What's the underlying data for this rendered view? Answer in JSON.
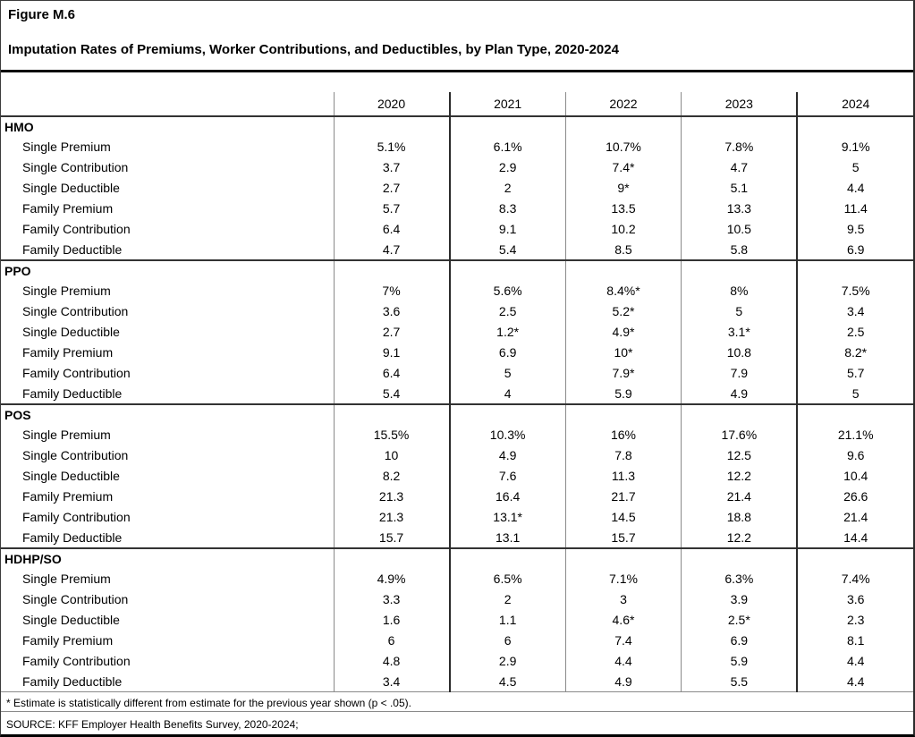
{
  "figure": {
    "label": "Figure M.6",
    "title": "Imputation Rates of Premiums, Worker Contributions, and Deductibles, by Plan Type, 2020-2024"
  },
  "chart_data": {
    "type": "table",
    "columns": [
      "2020",
      "2021",
      "2022",
      "2023",
      "2024"
    ],
    "sections": [
      {
        "name": "HMO",
        "rows": [
          {
            "label": "Single Premium",
            "values": [
              "5.1%",
              "6.1%",
              "10.7%",
              "7.8%",
              "9.1%"
            ]
          },
          {
            "label": "Single Contribution",
            "values": [
              "3.7",
              "2.9",
              "7.4*",
              "4.7",
              "5"
            ]
          },
          {
            "label": "Single Deductible",
            "values": [
              "2.7",
              "2",
              "9*",
              "5.1",
              "4.4"
            ]
          },
          {
            "label": "Family Premium",
            "values": [
              "5.7",
              "8.3",
              "13.5",
              "13.3",
              "11.4"
            ]
          },
          {
            "label": "Family Contribution",
            "values": [
              "6.4",
              "9.1",
              "10.2",
              "10.5",
              "9.5"
            ]
          },
          {
            "label": "Family Deductible",
            "values": [
              "4.7",
              "5.4",
              "8.5",
              "5.8",
              "6.9"
            ]
          }
        ]
      },
      {
        "name": "PPO",
        "rows": [
          {
            "label": "Single Premium",
            "values": [
              "7%",
              "5.6%",
              "8.4%*",
              "8%",
              "7.5%"
            ]
          },
          {
            "label": "Single Contribution",
            "values": [
              "3.6",
              "2.5",
              "5.2*",
              "5",
              "3.4"
            ]
          },
          {
            "label": "Single Deductible",
            "values": [
              "2.7",
              "1.2*",
              "4.9*",
              "3.1*",
              "2.5"
            ]
          },
          {
            "label": "Family Premium",
            "values": [
              "9.1",
              "6.9",
              "10*",
              "10.8",
              "8.2*"
            ]
          },
          {
            "label": "Family Contribution",
            "values": [
              "6.4",
              "5",
              "7.9*",
              "7.9",
              "5.7"
            ]
          },
          {
            "label": "Family Deductible",
            "values": [
              "5.4",
              "4",
              "5.9",
              "4.9",
              "5"
            ]
          }
        ]
      },
      {
        "name": "POS",
        "rows": [
          {
            "label": "Single Premium",
            "values": [
              "15.5%",
              "10.3%",
              "16%",
              "17.6%",
              "21.1%"
            ]
          },
          {
            "label": "Single Contribution",
            "values": [
              "10",
              "4.9",
              "7.8",
              "12.5",
              "9.6"
            ]
          },
          {
            "label": "Single Deductible",
            "values": [
              "8.2",
              "7.6",
              "11.3",
              "12.2",
              "10.4"
            ]
          },
          {
            "label": "Family Premium",
            "values": [
              "21.3",
              "16.4",
              "21.7",
              "21.4",
              "26.6"
            ]
          },
          {
            "label": "Family Contribution",
            "values": [
              "21.3",
              "13.1*",
              "14.5",
              "18.8",
              "21.4"
            ]
          },
          {
            "label": "Family Deductible",
            "values": [
              "15.7",
              "13.1",
              "15.7",
              "12.2",
              "14.4"
            ]
          }
        ]
      },
      {
        "name": "HDHP/SO",
        "rows": [
          {
            "label": "Single Premium",
            "values": [
              "4.9%",
              "6.5%",
              "7.1%",
              "6.3%",
              "7.4%"
            ]
          },
          {
            "label": "Single Contribution",
            "values": [
              "3.3",
              "2",
              "3",
              "3.9",
              "3.6"
            ]
          },
          {
            "label": "Single Deductible",
            "values": [
              "1.6",
              "1.1",
              "4.6*",
              "2.5*",
              "2.3"
            ]
          },
          {
            "label": "Family Premium",
            "values": [
              "6",
              "6",
              "7.4",
              "6.9",
              "8.1"
            ]
          },
          {
            "label": "Family Contribution",
            "values": [
              "4.8",
              "2.9",
              "4.4",
              "5.9",
              "4.4"
            ]
          },
          {
            "label": "Family Deductible",
            "values": [
              "3.4",
              "4.5",
              "4.9",
              "5.5",
              "4.4"
            ]
          }
        ]
      }
    ]
  },
  "footnotes": {
    "asterisk_note": "* Estimate is statistically different from estimate for the previous year shown (p < .05).",
    "source": "SOURCE: KFF Employer Health Benefits Survey, 2020-2024;"
  },
  "colors": {
    "text": "#000000",
    "background": "#ffffff",
    "rule_thick": "#000000",
    "rule_thin": "#8a8a8a",
    "rule_section": "#333333"
  }
}
